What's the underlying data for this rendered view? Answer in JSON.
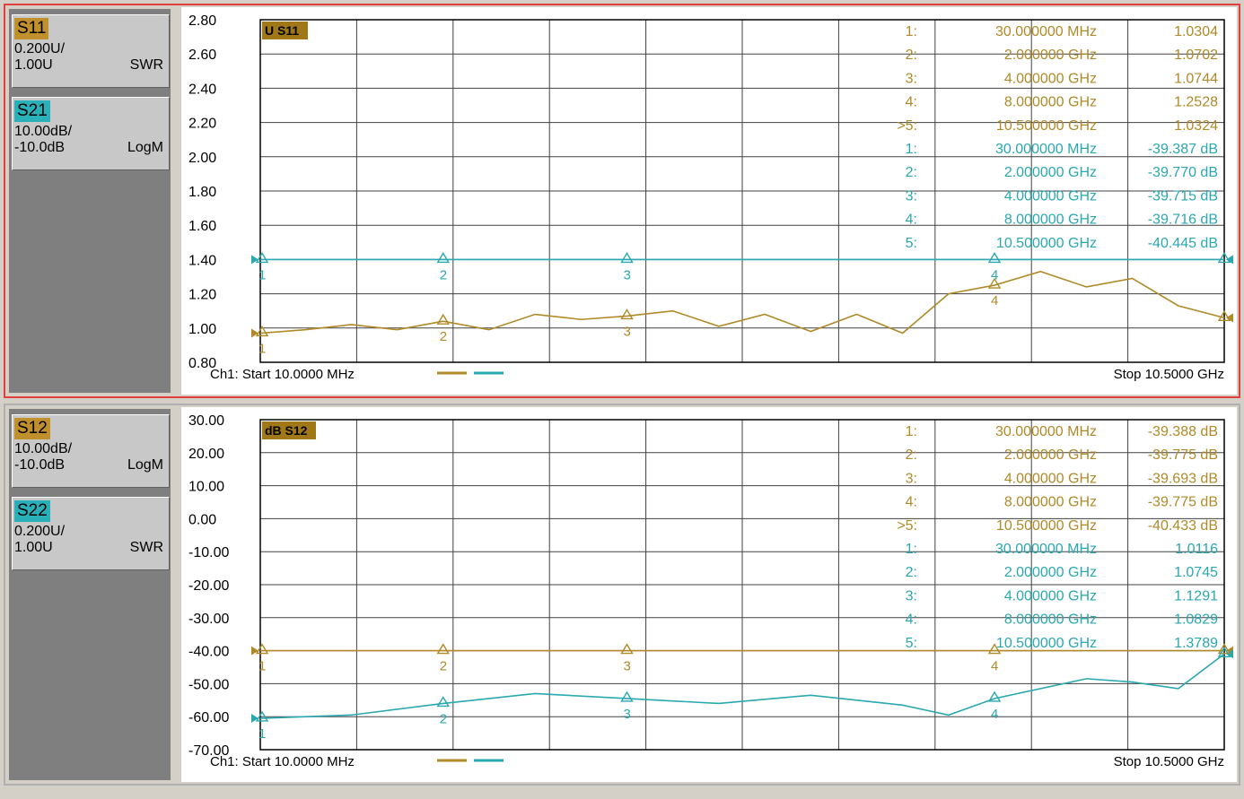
{
  "colors": {
    "s11": "#b08a28",
    "s21": "#2aa8b0",
    "s12": "#b08a28",
    "s22": "#2aa8b0",
    "s11_box": "#c0902c",
    "s21_box": "#2ab0b8",
    "grid": "#404040",
    "active_border": "#e04040"
  },
  "channel1": {
    "traces": [
      {
        "name": "S11",
        "scale": "0.200U/",
        "ref": "1.00U",
        "format": "SWR"
      },
      {
        "name": "S21",
        "scale": "10.00dB/",
        "ref": "-10.0dB",
        "format": "LogM"
      }
    ],
    "active_label": "U S11",
    "start_label": "Ch1: Start  10.0000 MHz",
    "stop_label": "Stop  10.5000 GHz",
    "y_ticks": [
      "2.80",
      "2.60",
      "2.40",
      "2.20",
      "2.00",
      "1.80",
      "1.60",
      "1.40",
      "1.20",
      "1.00",
      "0.80"
    ],
    "markers_a": [
      {
        "n": "1:",
        "f": "30.000000 MHz",
        "v": "1.0304"
      },
      {
        "n": "2:",
        "f": "2.000000 GHz",
        "v": "1.0702"
      },
      {
        "n": "3:",
        "f": "4.000000 GHz",
        "v": "1.0744"
      },
      {
        "n": "4:",
        "f": "8.000000 GHz",
        "v": "1.2528"
      },
      {
        "n": ">5:",
        "f": "10.500000 GHz",
        "v": "1.0324"
      }
    ],
    "markers_b": [
      {
        "n": "1:",
        "f": "30.000000 MHz",
        "v": "-39.387 dB"
      },
      {
        "n": "2:",
        "f": "2.000000 GHz",
        "v": "-39.770 dB"
      },
      {
        "n": "3:",
        "f": "4.000000 GHz",
        "v": "-39.715 dB"
      },
      {
        "n": "4:",
        "f": "8.000000 GHz",
        "v": "-39.716 dB"
      },
      {
        "n": "5:",
        "f": "10.500000 GHz",
        "v": "-40.445 dB"
      }
    ]
  },
  "channel2": {
    "traces": [
      {
        "name": "S12",
        "scale": "10.00dB/",
        "ref": "-10.0dB",
        "format": "LogM"
      },
      {
        "name": "S22",
        "scale": "0.200U/",
        "ref": "1.00U",
        "format": "SWR"
      }
    ],
    "active_label": "dB S12",
    "start_label": "Ch1: Start  10.0000 MHz",
    "stop_label": "Stop  10.5000 GHz",
    "y_ticks": [
      "30.00",
      "20.00",
      "10.00",
      "0.00",
      "-10.00",
      "-20.00",
      "-30.00",
      "-40.00",
      "-50.00",
      "-60.00",
      "-70.00"
    ],
    "markers_a": [
      {
        "n": "1:",
        "f": "30.000000 MHz",
        "v": "-39.388 dB"
      },
      {
        "n": "2:",
        "f": "2.000000 GHz",
        "v": "-39.775 dB"
      },
      {
        "n": "3:",
        "f": "4.000000 GHz",
        "v": "-39.693 dB"
      },
      {
        "n": "4:",
        "f": "8.000000 GHz",
        "v": "-39.775 dB"
      },
      {
        "n": ">5:",
        "f": "10.500000 GHz",
        "v": "-40.433 dB"
      }
    ],
    "markers_b": [
      {
        "n": "1:",
        "f": "30.000000 MHz",
        "v": "1.0116"
      },
      {
        "n": "2:",
        "f": "2.000000 GHz",
        "v": "1.0745"
      },
      {
        "n": "3:",
        "f": "4.000000 GHz",
        "v": "1.1291"
      },
      {
        "n": "4:",
        "f": "8.000000 GHz",
        "v": "1.0829"
      },
      {
        "n": "5:",
        "f": "10.500000 GHz",
        "v": "1.3789"
      }
    ]
  },
  "chart_data": [
    {
      "type": "line",
      "ylim": [
        0.8,
        2.8
      ],
      "xlim": [
        0.01,
        10.5
      ],
      "y_ticks": [
        "2.80",
        "2.60",
        "2.40",
        "2.20",
        "2.00",
        "1.80",
        "1.60",
        "1.40",
        "1.20",
        "1.00",
        "0.80"
      ],
      "series": [
        {
          "name": "S11",
          "color": "#b08a28",
          "x": [
            0.01,
            0.5,
            1.0,
            1.5,
            2.0,
            2.5,
            3.0,
            3.5,
            4.0,
            4.5,
            5.0,
            5.5,
            6.0,
            6.5,
            7.0,
            7.5,
            8.0,
            8.5,
            9.0,
            9.5,
            10.0,
            10.5
          ],
          "values": [
            0.97,
            0.99,
            1.02,
            0.99,
            1.04,
            0.99,
            1.08,
            1.05,
            1.07,
            1.1,
            1.01,
            1.08,
            0.98,
            1.08,
            0.97,
            1.2,
            1.25,
            1.33,
            1.24,
            1.29,
            1.13,
            1.06
          ]
        },
        {
          "name": "S21",
          "color": "#2aa8b0",
          "x": [
            0.01,
            10.5
          ],
          "values": [
            1.4,
            1.4
          ]
        }
      ],
      "markers": [
        {
          "x": 0.03,
          "label": "1"
        },
        {
          "x": 2.0,
          "label": "2"
        },
        {
          "x": 4.0,
          "label": "3"
        },
        {
          "x": 8.0,
          "label": "4"
        },
        {
          "x": 10.5,
          "label": "5"
        }
      ]
    },
    {
      "type": "line",
      "ylim": [
        -70,
        30
      ],
      "xlim": [
        0.01,
        10.5
      ],
      "y_ticks": [
        "30.00",
        "20.00",
        "10.00",
        "0.00",
        "-10.00",
        "-20.00",
        "-30.00",
        "-40.00",
        "-50.00",
        "-60.00",
        "-70.00"
      ],
      "series": [
        {
          "name": "S12",
          "color": "#b08a28",
          "x": [
            0.01,
            10.5
          ],
          "values": [
            -40.0,
            -40.0
          ]
        },
        {
          "name": "S22",
          "color": "#2aa8b0",
          "x": [
            0.01,
            1.0,
            2.0,
            3.0,
            4.0,
            5.0,
            6.0,
            7.0,
            7.5,
            8.0,
            9.0,
            9.5,
            10.0,
            10.5
          ],
          "values": [
            -60.5,
            -59.5,
            -56.0,
            -53.0,
            -54.5,
            -56.0,
            -53.5,
            -56.5,
            -59.5,
            -54.5,
            -48.5,
            -49.5,
            -51.5,
            -41.0
          ]
        }
      ],
      "markers": [
        {
          "x": 0.03,
          "label": "1"
        },
        {
          "x": 2.0,
          "label": "2"
        },
        {
          "x": 4.0,
          "label": "3"
        },
        {
          "x": 8.0,
          "label": "4"
        },
        {
          "x": 10.5,
          "label": "5"
        }
      ]
    }
  ]
}
